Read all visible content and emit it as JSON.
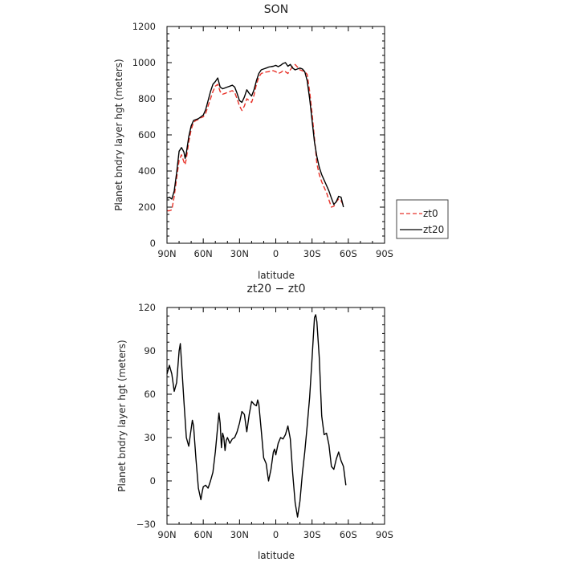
{
  "chart_data": [
    {
      "type": "line",
      "title": "SON",
      "xlabel": "latitude",
      "ylabel": "Planet bndry layer hgt (meters)",
      "xlim": [
        90,
        -90
      ],
      "ylim": [
        0,
        1200
      ],
      "x_ticks": [
        90,
        60,
        30,
        0,
        -30,
        -60,
        -90
      ],
      "x_tick_labels": [
        "90N",
        "60N",
        "30N",
        "0",
        "30S",
        "60S",
        "90S"
      ],
      "y_ticks": [
        0,
        200,
        400,
        600,
        800,
        1000,
        1200
      ],
      "y_tick_labels": [
        "0",
        "200",
        "400",
        "600",
        "800",
        "1000",
        "1200"
      ],
      "grid": false,
      "legend_position": "right",
      "series": [
        {
          "name": "zt0",
          "color": "#e8332a",
          "dash": "dashed",
          "points": [
            [
              90,
              180
            ],
            [
              88,
              180
            ],
            [
              86,
              185
            ],
            [
              84,
              260
            ],
            [
              82,
              360
            ],
            [
              80,
              460
            ],
            [
              78,
              490
            ],
            [
              76,
              450
            ],
            [
              75,
              435
            ],
            [
              74,
              470
            ],
            [
              72,
              560
            ],
            [
              70,
              630
            ],
            [
              68,
              670
            ],
            [
              66,
              680
            ],
            [
              64,
              685
            ],
            [
              62,
              695
            ],
            [
              60,
              700
            ],
            [
              58,
              720
            ],
            [
              56,
              760
            ],
            [
              54,
              800
            ],
            [
              52,
              840
            ],
            [
              50,
              870
            ],
            [
              48,
              880
            ],
            [
              46,
              840
            ],
            [
              44,
              825
            ],
            [
              42,
              830
            ],
            [
              40,
              835
            ],
            [
              38,
              840
            ],
            [
              36,
              845
            ],
            [
              34,
              835
            ],
            [
              32,
              800
            ],
            [
              30,
              760
            ],
            [
              28,
              735
            ],
            [
              26,
              760
            ],
            [
              24,
              800
            ],
            [
              22,
              790
            ],
            [
              20,
              780
            ],
            [
              18,
              820
            ],
            [
              16,
              880
            ],
            [
              14,
              920
            ],
            [
              12,
              940
            ],
            [
              10,
              945
            ],
            [
              8,
              948
            ],
            [
              6,
              950
            ],
            [
              4,
              955
            ],
            [
              2,
              955
            ],
            [
              0,
              950
            ],
            [
              -2,
              940
            ],
            [
              -4,
              945
            ],
            [
              -6,
              955
            ],
            [
              -8,
              950
            ],
            [
              -10,
              940
            ],
            [
              -12,
              960
            ],
            [
              -14,
              980
            ],
            [
              -16,
              990
            ],
            [
              -18,
              975
            ],
            [
              -20,
              960
            ],
            [
              -22,
              955
            ],
            [
              -24,
              950
            ],
            [
              -26,
              935
            ],
            [
              -28,
              840
            ],
            [
              -30,
              720
            ],
            [
              -32,
              580
            ],
            [
              -34,
              440
            ],
            [
              -36,
              380
            ],
            [
              -38,
              340
            ],
            [
              -40,
              310
            ],
            [
              -42,
              280
            ],
            [
              -44,
              240
            ],
            [
              -46,
              200
            ],
            [
              -48,
              205
            ],
            [
              -50,
              230
            ],
            [
              -52,
              245
            ],
            [
              -54,
              235
            ],
            [
              -56,
              210
            ]
          ]
        },
        {
          "name": "zt20",
          "color": "#000000",
          "dash": "solid",
          "points": [
            [
              90,
              250
            ],
            [
              88,
              255
            ],
            [
              86,
              245
            ],
            [
              84,
              290
            ],
            [
              82,
              390
            ],
            [
              80,
              510
            ],
            [
              78,
              530
            ],
            [
              76,
              505
            ],
            [
              75,
              470
            ],
            [
              74,
              500
            ],
            [
              72,
              590
            ],
            [
              70,
              650
            ],
            [
              68,
              680
            ],
            [
              66,
              685
            ],
            [
              64,
              690
            ],
            [
              62,
              700
            ],
            [
              60,
              710
            ],
            [
              58,
              740
            ],
            [
              56,
              790
            ],
            [
              54,
              840
            ],
            [
              52,
              880
            ],
            [
              50,
              895
            ],
            [
              48,
              915
            ],
            [
              46,
              865
            ],
            [
              44,
              855
            ],
            [
              42,
              860
            ],
            [
              40,
              865
            ],
            [
              38,
              870
            ],
            [
              36,
              875
            ],
            [
              34,
              865
            ],
            [
              32,
              830
            ],
            [
              30,
              790
            ],
            [
              28,
              780
            ],
            [
              26,
              810
            ],
            [
              24,
              850
            ],
            [
              22,
              830
            ],
            [
              20,
              815
            ],
            [
              18,
              850
            ],
            [
              16,
              900
            ],
            [
              14,
              940
            ],
            [
              12,
              960
            ],
            [
              10,
              965
            ],
            [
              8,
              970
            ],
            [
              6,
              975
            ],
            [
              4,
              978
            ],
            [
              2,
              980
            ],
            [
              0,
              985
            ],
            [
              -2,
              978
            ],
            [
              -4,
              985
            ],
            [
              -6,
              995
            ],
            [
              -8,
              1000
            ],
            [
              -10,
              980
            ],
            [
              -12,
              990
            ],
            [
              -14,
              970
            ],
            [
              -16,
              960
            ],
            [
              -18,
              965
            ],
            [
              -20,
              970
            ],
            [
              -22,
              965
            ],
            [
              -24,
              950
            ],
            [
              -26,
              900
            ],
            [
              -28,
              800
            ],
            [
              -30,
              680
            ],
            [
              -32,
              560
            ],
            [
              -34,
              480
            ],
            [
              -36,
              420
            ],
            [
              -38,
              380
            ],
            [
              -40,
              350
            ],
            [
              -42,
              320
            ],
            [
              -44,
              290
            ],
            [
              -46,
              250
            ],
            [
              -48,
              215
            ],
            [
              -50,
              230
            ],
            [
              -52,
              260
            ],
            [
              -54,
              255
            ],
            [
              -56,
              200
            ]
          ]
        }
      ]
    },
    {
      "type": "line",
      "title": "zt20 − zt0",
      "xlabel": "latitude",
      "ylabel": "Planet bndry layer hgt (meters)",
      "xlim": [
        90,
        -90
      ],
      "ylim": [
        -30,
        120
      ],
      "x_ticks": [
        90,
        60,
        30,
        0,
        -30,
        -60,
        -90
      ],
      "x_tick_labels": [
        "90N",
        "60N",
        "30N",
        "0",
        "30S",
        "60S",
        "90S"
      ],
      "y_ticks": [
        -30,
        0,
        30,
        60,
        90,
        120
      ],
      "y_tick_labels": [
        "−30",
        "0",
        "30",
        "60",
        "90",
        "120"
      ],
      "grid": false,
      "series": [
        {
          "color": "#000000",
          "dash": "solid",
          "points": [
            [
              90,
              74
            ],
            [
              88,
              80
            ],
            [
              86,
              74
            ],
            [
              84,
              62
            ],
            [
              82,
              68
            ],
            [
              80,
              90
            ],
            [
              79,
              95
            ],
            [
              78,
              82
            ],
            [
              76,
              55
            ],
            [
              74,
              30
            ],
            [
              72,
              24
            ],
            [
              70,
              36
            ],
            [
              69,
              42
            ],
            [
              68,
              38
            ],
            [
              66,
              15
            ],
            [
              64,
              -5
            ],
            [
              62,
              -13
            ],
            [
              61,
              -8
            ],
            [
              60,
              -4
            ],
            [
              58,
              -3
            ],
            [
              56,
              -5
            ],
            [
              54,
              0
            ],
            [
              52,
              6
            ],
            [
              50,
              20
            ],
            [
              48,
              38
            ],
            [
              47,
              47
            ],
            [
              46,
              40
            ],
            [
              45,
              23
            ],
            [
              44,
              33
            ],
            [
              43,
              30
            ],
            [
              42,
              21
            ],
            [
              41,
              28
            ],
            [
              40,
              30
            ],
            [
              38,
              26
            ],
            [
              36,
              29
            ],
            [
              34,
              30
            ],
            [
              32,
              34
            ],
            [
              30,
              40
            ],
            [
              28,
              48
            ],
            [
              26,
              46
            ],
            [
              25,
              40
            ],
            [
              24,
              34
            ],
            [
              22,
              46
            ],
            [
              20,
              55
            ],
            [
              18,
              53
            ],
            [
              16,
              52
            ],
            [
              15,
              56
            ],
            [
              14,
              53
            ],
            [
              12,
              35
            ],
            [
              10,
              16
            ],
            [
              8,
              12
            ],
            [
              6,
              0
            ],
            [
              4,
              8
            ],
            [
              2,
              20
            ],
            [
              1,
              22
            ],
            [
              0,
              18
            ],
            [
              -2,
              26
            ],
            [
              -4,
              30
            ],
            [
              -6,
              29
            ],
            [
              -8,
              32
            ],
            [
              -10,
              38
            ],
            [
              -12,
              29
            ],
            [
              -14,
              5
            ],
            [
              -16,
              -15
            ],
            [
              -18,
              -25
            ],
            [
              -20,
              -14
            ],
            [
              -22,
              5
            ],
            [
              -24,
              20
            ],
            [
              -26,
              38
            ],
            [
              -28,
              58
            ],
            [
              -30,
              85
            ],
            [
              -32,
              113
            ],
            [
              -33,
              115
            ],
            [
              -34,
              110
            ],
            [
              -36,
              85
            ],
            [
              -38,
              45
            ],
            [
              -40,
              32
            ],
            [
              -42,
              33
            ],
            [
              -44,
              25
            ],
            [
              -46,
              10
            ],
            [
              -48,
              8
            ],
            [
              -50,
              15
            ],
            [
              -52,
              20
            ],
            [
              -54,
              14
            ],
            [
              -56,
              10
            ],
            [
              -58,
              -3
            ]
          ]
        }
      ]
    }
  ]
}
